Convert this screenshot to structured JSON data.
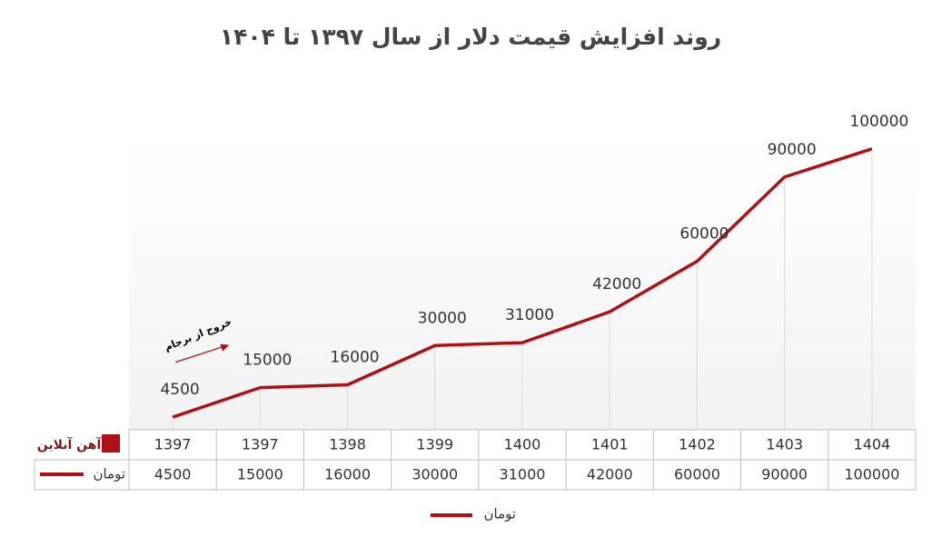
{
  "logo": "آهن آنلاین",
  "chart_data": {
    "type": "line",
    "title": "روند افزایش قیمت دلار از سال ۱۳۹۷ تا ۱۴۰۴",
    "annotation": "خروج از برجام",
    "categories": [
      "1397",
      "1397",
      "1398",
      "1399",
      "1400",
      "1401",
      "1402",
      "1403",
      "1404"
    ],
    "series": [
      {
        "name": "تومان",
        "color": "#b01117",
        "values": [
          4500,
          15000,
          16000,
          30000,
          31000,
          42000,
          60000,
          90000,
          100000
        ]
      }
    ],
    "ylim": [
      0,
      120000
    ],
    "grid": true,
    "legend": "bottom"
  }
}
